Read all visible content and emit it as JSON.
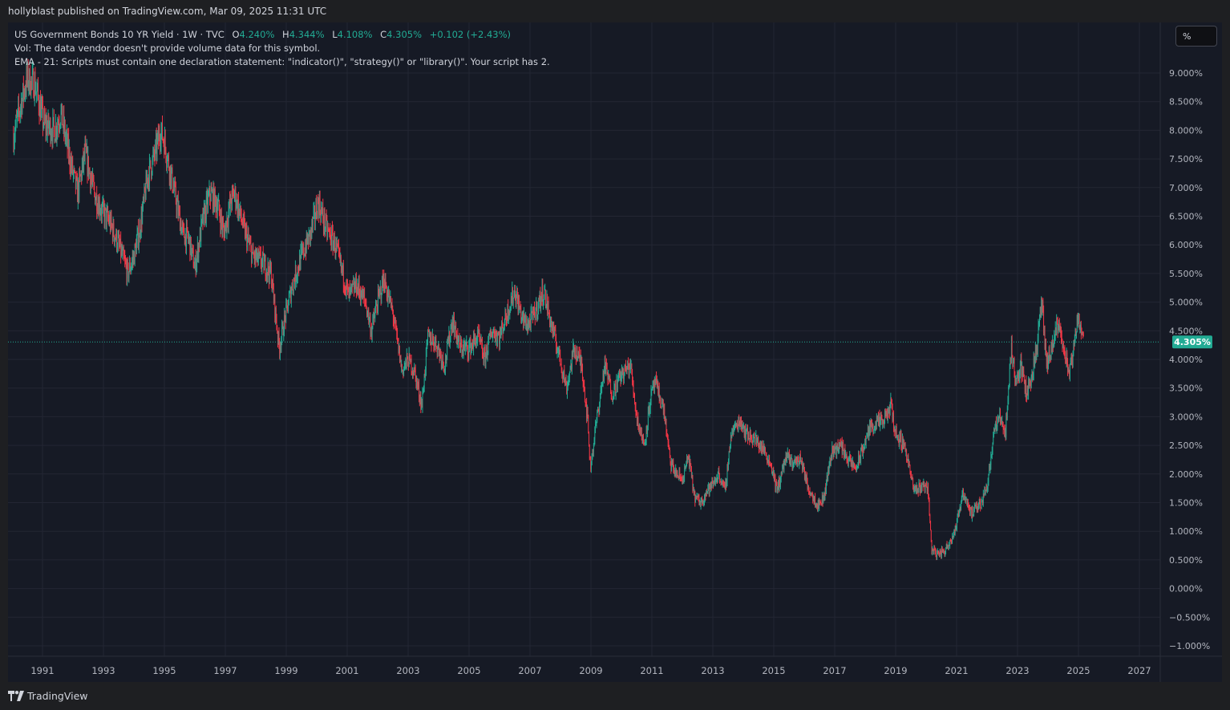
{
  "header": {
    "published": "hollyblast published on TradingView.com, Mar 09, 2025 11:31 UTC"
  },
  "legend": {
    "symbol": "US Government Bonds 10 YR Yield · 1W · TVC",
    "o_label": "O",
    "o_value": "4.240%",
    "h_label": "H",
    "h_value": "4.344%",
    "l_label": "L",
    "l_value": "4.108%",
    "c_label": "C",
    "c_value": "4.305%",
    "change": "+0.102 (+2.43%)",
    "vol_note": "Vol: The data vendor doesn't provide volume data for this symbol.",
    "ema_note": "EMA - 21: Scripts must contain one declaration statement: \"indicator()\", \"strategy()\" or \"library()\". Your script has 2."
  },
  "scale_button": {
    "label": "%"
  },
  "footer": {
    "brand": "TradingView"
  },
  "chart_data": {
    "type": "candlestick",
    "interval": "1W",
    "y_unit": "%",
    "ylim": [
      -1.2,
      9.65
    ],
    "xlim": [
      1990.0,
      2028.5
    ],
    "y_ticks": [
      9.0,
      8.5,
      8.0,
      7.5,
      7.0,
      6.5,
      6.0,
      5.5,
      5.0,
      4.5,
      4.0,
      3.5,
      3.0,
      2.5,
      2.0,
      1.5,
      1.0,
      0.5,
      0.0,
      -0.5,
      -1.0
    ],
    "y_tick_labels": [
      "9.000%",
      "8.500%",
      "8.000%",
      "7.500%",
      "7.000%",
      "6.500%",
      "6.000%",
      "5.500%",
      "5.000%",
      "4.500%",
      "4.000%",
      "3.500%",
      "3.000%",
      "2.500%",
      "2.000%",
      "1.500%",
      "1.000%",
      "0.500%",
      "0.000%",
      "−0.500%",
      "−1.000%"
    ],
    "x_ticks": [
      1991,
      1993,
      1995,
      1997,
      1999,
      2001,
      2003,
      2005,
      2007,
      2009,
      2011,
      2013,
      2015,
      2017,
      2019,
      2021,
      2023,
      2025,
      2027
    ],
    "x_tick_labels": [
      "1991",
      "1993",
      "1995",
      "1997",
      "1999",
      "2001",
      "2003",
      "2005",
      "2007",
      "2009",
      "2011",
      "2013",
      "2015",
      "2017",
      "2019",
      "2021",
      "2023",
      "2025",
      "2027"
    ],
    "price_line": {
      "value": 4.305,
      "label": "4.305%"
    },
    "colors": {
      "up": "#22ab94",
      "down": "#f23645",
      "background": "#161a25",
      "grid": "#232633",
      "axis_text": "#b2b5be",
      "price_label_bg": "#22ab94"
    },
    "close_path": [
      [
        1990.05,
        7.9
      ],
      [
        1990.35,
        8.6
      ],
      [
        1990.5,
        8.9
      ],
      [
        1990.75,
        8.8
      ],
      [
        1991.05,
        8.1
      ],
      [
        1991.4,
        8.0
      ],
      [
        1991.6,
        8.3
      ],
      [
        1991.9,
        7.5
      ],
      [
        1992.15,
        6.9
      ],
      [
        1992.4,
        7.6
      ],
      [
        1992.7,
        6.9
      ],
      [
        1992.95,
        6.6
      ],
      [
        1993.2,
        6.4
      ],
      [
        1993.5,
        6.0
      ],
      [
        1993.8,
        5.5
      ],
      [
        1994.0,
        5.8
      ],
      [
        1994.2,
        6.3
      ],
      [
        1994.45,
        7.2
      ],
      [
        1994.7,
        7.6
      ],
      [
        1994.87,
        8.0
      ],
      [
        1995.0,
        7.8
      ],
      [
        1995.3,
        7.0
      ],
      [
        1995.6,
        6.2
      ],
      [
        1995.8,
        6.1
      ],
      [
        1996.0,
        5.6
      ],
      [
        1996.25,
        6.4
      ],
      [
        1996.5,
        6.9
      ],
      [
        1996.75,
        6.7
      ],
      [
        1996.95,
        6.2
      ],
      [
        1997.2,
        6.8
      ],
      [
        1997.3,
        6.9
      ],
      [
        1997.6,
        6.3
      ],
      [
        1997.9,
        5.8
      ],
      [
        1998.2,
        5.7
      ],
      [
        1998.5,
        5.5
      ],
      [
        1998.77,
        4.2
      ],
      [
        1998.95,
        4.7
      ],
      [
        1999.2,
        5.3
      ],
      [
        1999.5,
        5.8
      ],
      [
        1999.8,
        6.2
      ],
      [
        2000.05,
        6.75
      ],
      [
        2000.3,
        6.3
      ],
      [
        2000.6,
        6.0
      ],
      [
        2000.9,
        5.4
      ],
      [
        2001.05,
        5.1
      ],
      [
        2001.3,
        5.3
      ],
      [
        2001.6,
        5.0
      ],
      [
        2001.8,
        4.5
      ],
      [
        2001.95,
        4.9
      ],
      [
        2002.2,
        5.4
      ],
      [
        2002.5,
        4.8
      ],
      [
        2002.8,
        3.8
      ],
      [
        2003.0,
        4.0
      ],
      [
        2003.2,
        3.8
      ],
      [
        2003.45,
        3.2
      ],
      [
        2003.65,
        4.4
      ],
      [
        2003.9,
        4.3
      ],
      [
        2004.2,
        3.9
      ],
      [
        2004.45,
        4.7
      ],
      [
        2004.7,
        4.2
      ],
      [
        2005.0,
        4.2
      ],
      [
        2005.3,
        4.4
      ],
      [
        2005.5,
        4.0
      ],
      [
        2005.75,
        4.5
      ],
      [
        2006.0,
        4.4
      ],
      [
        2006.3,
        4.9
      ],
      [
        2006.5,
        5.2
      ],
      [
        2006.75,
        4.7
      ],
      [
        2006.95,
        4.6
      ],
      [
        2007.15,
        4.8
      ],
      [
        2007.45,
        5.2
      ],
      [
        2007.7,
        4.6
      ],
      [
        2007.95,
        4.1
      ],
      [
        2008.2,
        3.5
      ],
      [
        2008.45,
        4.2
      ],
      [
        2008.7,
        3.9
      ],
      [
        2008.9,
        2.9
      ],
      [
        2008.98,
        2.1
      ],
      [
        2009.15,
        2.8
      ],
      [
        2009.45,
        3.9
      ],
      [
        2009.7,
        3.4
      ],
      [
        2009.95,
        3.7
      ],
      [
        2010.3,
        3.9
      ],
      [
        2010.5,
        3.0
      ],
      [
        2010.75,
        2.5
      ],
      [
        2010.95,
        3.3
      ],
      [
        2011.1,
        3.6
      ],
      [
        2011.4,
        3.1
      ],
      [
        2011.6,
        2.2
      ],
      [
        2011.8,
        2.0
      ],
      [
        2012.0,
        1.9
      ],
      [
        2012.2,
        2.3
      ],
      [
        2012.4,
        1.6
      ],
      [
        2012.6,
        1.5
      ],
      [
        2012.8,
        1.7
      ],
      [
        2012.97,
        1.8
      ],
      [
        2013.2,
        2.0
      ],
      [
        2013.4,
        1.7
      ],
      [
        2013.6,
        2.7
      ],
      [
        2013.9,
        2.95
      ],
      [
        2014.1,
        2.7
      ],
      [
        2014.4,
        2.6
      ],
      [
        2014.7,
        2.4
      ],
      [
        2014.95,
        2.1
      ],
      [
        2015.1,
        1.7
      ],
      [
        2015.4,
        2.3
      ],
      [
        2015.6,
        2.2
      ],
      [
        2015.9,
        2.25
      ],
      [
        2016.1,
        1.8
      ],
      [
        2016.45,
        1.45
      ],
      [
        2016.65,
        1.6
      ],
      [
        2016.9,
        2.4
      ],
      [
        2017.2,
        2.5
      ],
      [
        2017.5,
        2.2
      ],
      [
        2017.7,
        2.1
      ],
      [
        2017.9,
        2.4
      ],
      [
        2018.15,
        2.8
      ],
      [
        2018.4,
        2.9
      ],
      [
        2018.6,
        2.9
      ],
      [
        2018.85,
        3.2
      ],
      [
        2019.0,
        2.7
      ],
      [
        2019.3,
        2.5
      ],
      [
        2019.6,
        1.7
      ],
      [
        2019.85,
        1.8
      ],
      [
        2020.05,
        1.8
      ],
      [
        2020.18,
        0.7
      ],
      [
        2020.35,
        0.6
      ],
      [
        2020.6,
        0.65
      ],
      [
        2020.85,
        0.9
      ],
      [
        2021.0,
        1.1
      ],
      [
        2021.2,
        1.7
      ],
      [
        2021.5,
        1.3
      ],
      [
        2021.8,
        1.5
      ],
      [
        2022.0,
        1.8
      ],
      [
        2022.25,
        2.8
      ],
      [
        2022.45,
        3.0
      ],
      [
        2022.6,
        2.7
      ],
      [
        2022.8,
        4.2
      ],
      [
        2022.95,
        3.6
      ],
      [
        2023.1,
        3.9
      ],
      [
        2023.3,
        3.4
      ],
      [
        2023.5,
        3.8
      ],
      [
        2023.65,
        4.3
      ],
      [
        2023.8,
        5.0
      ],
      [
        2023.95,
        3.9
      ],
      [
        2024.15,
        4.2
      ],
      [
        2024.3,
        4.6
      ],
      [
        2024.5,
        4.3
      ],
      [
        2024.7,
        3.7
      ],
      [
        2024.85,
        4.2
      ],
      [
        2025.0,
        4.8
      ],
      [
        2025.1,
        4.5
      ],
      [
        2025.18,
        4.305
      ]
    ]
  }
}
